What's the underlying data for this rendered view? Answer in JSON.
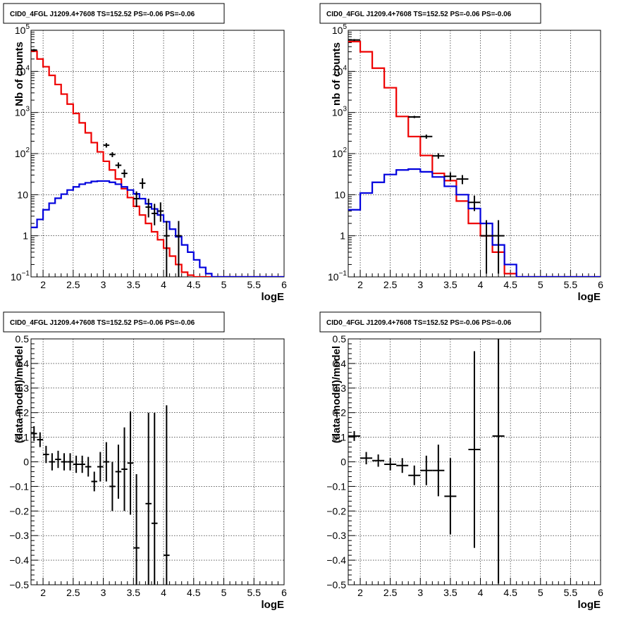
{
  "chart_data": [
    {
      "type": "line",
      "title": "CID0_4FGL J1209.4+7608 TS=152.52 PS=-0.06 PS=-0.06",
      "xlabel": "logE",
      "ylabel": "Nb of counts",
      "xlim": [
        1.8,
        6.0
      ],
      "ylim": [
        0.1,
        100000
      ],
      "yscale": "log",
      "grid": true,
      "xticks": [
        "2",
        "2.5",
        "3",
        "3.5",
        "4",
        "4.5",
        "5",
        "5.5",
        "6"
      ],
      "yticks": [
        {
          "v": 0.1,
          "m": "10",
          "e": "−1"
        },
        {
          "v": 1,
          "m": "1",
          "e": ""
        },
        {
          "v": 10,
          "m": "10",
          "e": ""
        },
        {
          "v": 100,
          "m": "10",
          "e": "2"
        },
        {
          "v": 1000,
          "m": "10",
          "e": "3"
        },
        {
          "v": 10000,
          "m": "10",
          "e": "4"
        },
        {
          "v": 100000,
          "m": "10",
          "e": "5"
        }
      ],
      "bin_edges": [
        1.8,
        1.9,
        2.0,
        2.1,
        2.2,
        2.3,
        2.4,
        2.5,
        2.6,
        2.7,
        2.8,
        2.9,
        3.0,
        3.1,
        3.2,
        3.3,
        3.4,
        3.5,
        3.6,
        3.7,
        3.8,
        3.9,
        4.0,
        4.1,
        4.2,
        4.3,
        4.4,
        4.5,
        4.6,
        4.7,
        4.8,
        4.9,
        5.0,
        5.1,
        5.2,
        5.3,
        5.4,
        5.5,
        5.6,
        5.7,
        5.8,
        5.9,
        6.0
      ],
      "series": [
        {
          "name": "model",
          "color": "#ee0000",
          "values": [
            31000,
            20000,
            13000,
            8000,
            4800,
            2800,
            1600,
            950,
            560,
            320,
            185,
            110,
            65,
            40,
            24,
            14,
            8.5,
            5.2,
            3.2,
            2.0,
            1.25,
            0.8,
            0.5,
            0.32,
            0.2,
            0.13,
            0.11,
            0.1,
            0.1,
            0.1,
            0.1,
            0.1,
            0.1,
            0.1,
            0.1,
            0.1,
            0.1,
            0.1,
            0.1,
            0.1,
            0.1,
            0.1
          ]
        },
        {
          "name": "source",
          "color": "#0000dd",
          "values": [
            1.6,
            2.5,
            4.3,
            6.2,
            8.2,
            10.3,
            13,
            15.5,
            18,
            19.5,
            21,
            21.5,
            21.5,
            20,
            18,
            15.5,
            13,
            10.5,
            8,
            6,
            4.5,
            3.2,
            2.2,
            1.45,
            0.95,
            0.6,
            0.4,
            0.26,
            0.17,
            0.12,
            0.1,
            0.1,
            0.1,
            0.1,
            0.1,
            0.1,
            0.1,
            0.1,
            0.1,
            0.1,
            0.1,
            0.1
          ]
        }
      ],
      "data_points": [
        {
          "x": 1.85,
          "y": 33000,
          "lo": 31000,
          "hi": 35000
        },
        {
          "x": 3.05,
          "y": 160,
          "lo": 140,
          "hi": 180
        },
        {
          "x": 3.15,
          "y": 95,
          "lo": 82,
          "hi": 108
        },
        {
          "x": 3.25,
          "y": 52,
          "lo": 44,
          "hi": 61
        },
        {
          "x": 3.35,
          "y": 33,
          "lo": 26,
          "hi": 41
        },
        {
          "x": 3.55,
          "y": 8,
          "lo": 5,
          "hi": 12
        },
        {
          "x": 3.65,
          "y": 19,
          "lo": 14,
          "hi": 25
        },
        {
          "x": 3.75,
          "y": 5,
          "lo": 2.8,
          "hi": 8
        },
        {
          "x": 3.85,
          "y": 3.5,
          "lo": 1.8,
          "hi": 6
        },
        {
          "x": 3.95,
          "y": 4,
          "lo": 2.2,
          "hi": 6.5
        },
        {
          "x": 4.05,
          "y": 1,
          "lo": 0.1,
          "hi": 2.3
        },
        {
          "x": 4.25,
          "y": 1,
          "lo": 0.1,
          "hi": 2.3
        }
      ]
    },
    {
      "type": "line",
      "title": "CID0_4FGL J1209.4+7608 TS=152.52 PS=-0.06 PS=-0.06",
      "xlabel": "logE",
      "ylabel": "nb of counts",
      "xlim": [
        1.8,
        6.0
      ],
      "ylim": [
        0.1,
        100000
      ],
      "yscale": "log",
      "grid": true,
      "xticks": [
        "2",
        "2.5",
        "3",
        "3.5",
        "4",
        "4.5",
        "5",
        "5.5",
        "6"
      ],
      "yticks": [
        {
          "v": 0.1,
          "m": "10",
          "e": "−1"
        },
        {
          "v": 1,
          "m": "1",
          "e": ""
        },
        {
          "v": 10,
          "m": "10",
          "e": ""
        },
        {
          "v": 100,
          "m": "10",
          "e": "2"
        },
        {
          "v": 1000,
          "m": "10",
          "e": "3"
        },
        {
          "v": 10000,
          "m": "10",
          "e": "4"
        },
        {
          "v": 100000,
          "m": "10",
          "e": "5"
        }
      ],
      "bin_edges": [
        1.8,
        2.0,
        2.2,
        2.4,
        2.6,
        2.8,
        3.0,
        3.2,
        3.4,
        3.6,
        3.8,
        4.0,
        4.2,
        4.4,
        4.6,
        4.8,
        5.0,
        5.2,
        5.4,
        5.6,
        5.8,
        6.0
      ],
      "series": [
        {
          "name": "model",
          "color": "#ee0000",
          "values": [
            53000,
            30000,
            12000,
            4000,
            800,
            260,
            90,
            33,
            22,
            7,
            2,
            1,
            0.4,
            0.12,
            0.1,
            0.1,
            0.1,
            0.1,
            0.1,
            0.1,
            0.1
          ]
        },
        {
          "name": "source",
          "color": "#0000dd",
          "values": [
            4.3,
            11,
            20,
            31,
            40,
            42,
            36,
            27,
            16,
            10,
            4.6,
            2,
            0.6,
            0.2,
            0.1,
            0.1,
            0.1,
            0.1,
            0.1,
            0.1,
            0.1
          ]
        }
      ],
      "data_points": [
        {
          "x": 1.9,
          "y": 58000,
          "lo": 55000,
          "hi": 61000
        },
        {
          "x": 2.9,
          "y": 780,
          "lo": 730,
          "hi": 830
        },
        {
          "x": 3.1,
          "y": 260,
          "lo": 230,
          "hi": 290
        },
        {
          "x": 3.3,
          "y": 88,
          "lo": 75,
          "hi": 102
        },
        {
          "x": 3.5,
          "y": 28,
          "lo": 22,
          "hi": 35
        },
        {
          "x": 3.7,
          "y": 24,
          "lo": 18,
          "hi": 30
        },
        {
          "x": 3.9,
          "y": 6.5,
          "lo": 4,
          "hi": 9.5
        },
        {
          "x": 4.1,
          "y": 1,
          "lo": 0.12,
          "hi": 2.4
        },
        {
          "x": 4.3,
          "y": 1,
          "lo": 0.12,
          "hi": 2.4
        }
      ]
    },
    {
      "type": "scatter",
      "title": "CID0_4FGL J1209.4+7608 TS=152.52 PS=-0.06 PS=-0.06",
      "xlabel": "logE",
      "ylabel": "(data-model)/model",
      "xlim": [
        1.8,
        6.0
      ],
      "ylim": [
        -0.5,
        0.5
      ],
      "grid": true,
      "xticks": [
        "2",
        "2.5",
        "3",
        "3.5",
        "4",
        "4.5",
        "5",
        "5.5",
        "6"
      ],
      "yticks": [
        "−0.5",
        "−0.4",
        "−0.3",
        "−0.2",
        "−0.1",
        "0",
        "0.1",
        "0.2",
        "0.3",
        "0.4",
        "0.5"
      ],
      "points": [
        {
          "x": 1.85,
          "dx": 0.05,
          "y": 0.115,
          "err": 0.03
        },
        {
          "x": 1.95,
          "dx": 0.05,
          "y": 0.09,
          "err": 0.03
        },
        {
          "x": 2.05,
          "dx": 0.05,
          "y": 0.03,
          "err": 0.035
        },
        {
          "x": 2.15,
          "dx": 0.05,
          "y": 0.0,
          "err": 0.035
        },
        {
          "x": 2.25,
          "dx": 0.05,
          "y": 0.01,
          "err": 0.035
        },
        {
          "x": 2.35,
          "dx": 0.05,
          "y": 0.0,
          "err": 0.035
        },
        {
          "x": 2.45,
          "dx": 0.05,
          "y": 0.0,
          "err": 0.035
        },
        {
          "x": 2.55,
          "dx": 0.05,
          "y": -0.01,
          "err": 0.035
        },
        {
          "x": 2.65,
          "dx": 0.05,
          "y": -0.01,
          "err": 0.035
        },
        {
          "x": 2.75,
          "dx": 0.05,
          "y": -0.02,
          "err": 0.04
        },
        {
          "x": 2.85,
          "dx": 0.05,
          "y": -0.08,
          "err": 0.04
        },
        {
          "x": 2.95,
          "dx": 0.05,
          "y": -0.02,
          "err": 0.06
        },
        {
          "x": 3.05,
          "dx": 0.05,
          "y": 0.0,
          "err": 0.08
        },
        {
          "x": 3.15,
          "dx": 0.05,
          "y": -0.1,
          "err": 0.1
        },
        {
          "x": 3.25,
          "dx": 0.05,
          "y": -0.04,
          "err": 0.11
        },
        {
          "x": 3.35,
          "dx": 0.05,
          "y": -0.03,
          "err": 0.17
        },
        {
          "x": 3.45,
          "dx": 0.05,
          "y": -0.005,
          "err": 0.21
        },
        {
          "x": 3.55,
          "dx": 0.05,
          "y": -0.35,
          "err": 0.3
        },
        {
          "x": 3.75,
          "dx": 0.05,
          "y": -0.17,
          "err": 0.37
        },
        {
          "x": 3.85,
          "dx": 0.05,
          "y": -0.25,
          "err": 0.45
        },
        {
          "x": 4.05,
          "dx": 0.05,
          "y": -0.38,
          "err": 0.61
        }
      ]
    },
    {
      "type": "scatter",
      "title": "CID0_4FGL J1209.4+7608 TS=152.52 PS=-0.06 PS=-0.06",
      "xlabel": "logE",
      "ylabel": "(data-model)/model",
      "xlim": [
        1.8,
        6.0
      ],
      "ylim": [
        -0.5,
        0.5
      ],
      "grid": true,
      "xticks": [
        "2",
        "2.5",
        "3",
        "3.5",
        "4",
        "4.5",
        "5",
        "5.5",
        "6"
      ],
      "yticks": [
        "−0.5",
        "−0.4",
        "−0.3",
        "−0.2",
        "−0.1",
        "0",
        "0.1",
        "0.2",
        "0.3",
        "0.4",
        "0.5"
      ],
      "points": [
        {
          "x": 1.9,
          "dx": 0.1,
          "y": 0.105,
          "err": 0.02
        },
        {
          "x": 2.1,
          "dx": 0.1,
          "y": 0.015,
          "err": 0.025
        },
        {
          "x": 2.3,
          "dx": 0.1,
          "y": 0.005,
          "err": 0.025
        },
        {
          "x": 2.5,
          "dx": 0.1,
          "y": -0.01,
          "err": 0.025
        },
        {
          "x": 2.7,
          "dx": 0.1,
          "y": -0.015,
          "err": 0.03
        },
        {
          "x": 2.9,
          "dx": 0.1,
          "y": -0.055,
          "err": 0.04
        },
        {
          "x": 3.1,
          "dx": 0.1,
          "y": -0.035,
          "err": 0.06
        },
        {
          "x": 3.3,
          "dx": 0.1,
          "y": -0.035,
          "err": 0.105
        },
        {
          "x": 3.5,
          "dx": 0.1,
          "y": -0.14,
          "err": 0.155
        },
        {
          "x": 3.9,
          "dx": 0.1,
          "y": 0.05,
          "err": 0.4
        },
        {
          "x": 4.3,
          "dx": 0.1,
          "y": 0.105,
          "err": 0.6
        }
      ]
    }
  ]
}
